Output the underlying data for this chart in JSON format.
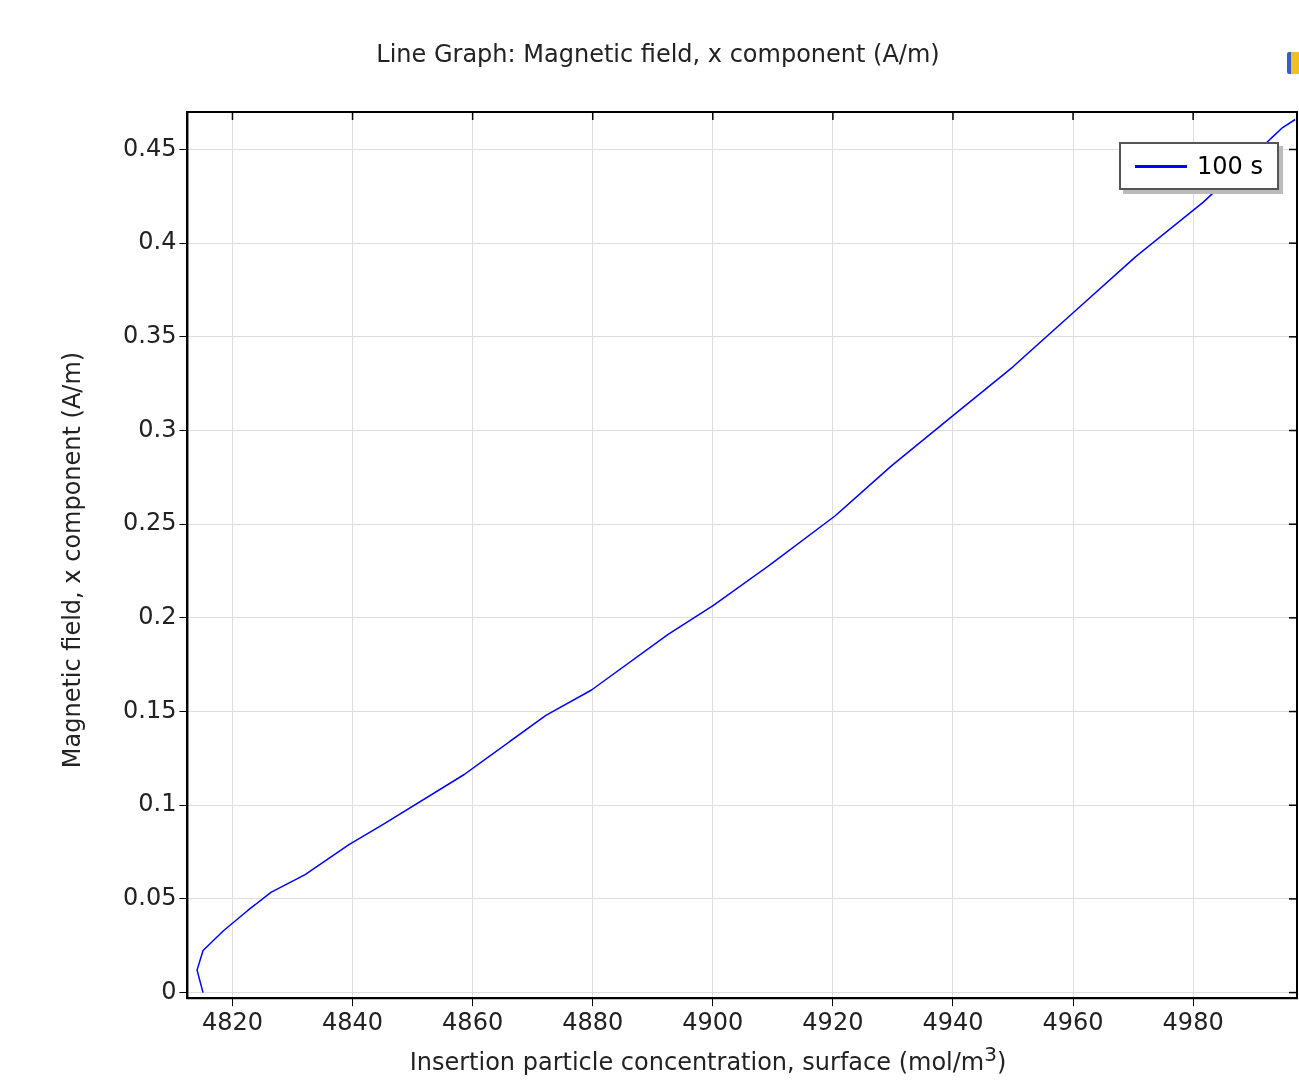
{
  "chart_data": {
    "type": "line",
    "title": "Line Graph: Magnetic field, x component (A/m)",
    "xlabel": "Insertion particle concentration, surface (mol/m$^{3}$)",
    "ylabel": "Magnetic field, x component (A/m)",
    "x": [
      4815.1,
      4814.1,
      4815.1,
      4818.5,
      4822.5,
      4826.4,
      4832.1,
      4839.4,
      4845.1,
      4858.6,
      4872.2,
      4879.8,
      4892.5,
      4900.1,
      4909.4,
      4920.4,
      4929.7,
      4939.9,
      4950,
      4960.2,
      4970.4,
      4981.7,
      4994.9,
      4997
    ],
    "series": [
      {
        "name": "100 s",
        "color": "#0000ff",
        "values": [
          0,
          0.012,
          0.0225,
          0.033,
          0.0437,
          0.0535,
          0.063,
          0.079,
          0.0898,
          0.1164,
          0.148,
          0.1615,
          0.191,
          0.2067,
          0.228,
          0.2545,
          0.281,
          0.3077,
          0.334,
          0.3634,
          0.3927,
          0.4219,
          0.4617,
          0.466
        ]
      }
    ],
    "xlim": [
      4812.5,
      4997.3
    ],
    "ylim": [
      -0.003,
      0.47
    ],
    "xticks": [
      4820,
      4840,
      4860,
      4880,
      4900,
      4920,
      4940,
      4960,
      4980
    ],
    "yticks": [
      0,
      0.05,
      0.1,
      0.15,
      0.2,
      0.25,
      0.3,
      0.35,
      0.4,
      0.45
    ],
    "grid": true,
    "legend": "top right",
    "marker": "none",
    "line_style": "solid"
  }
}
